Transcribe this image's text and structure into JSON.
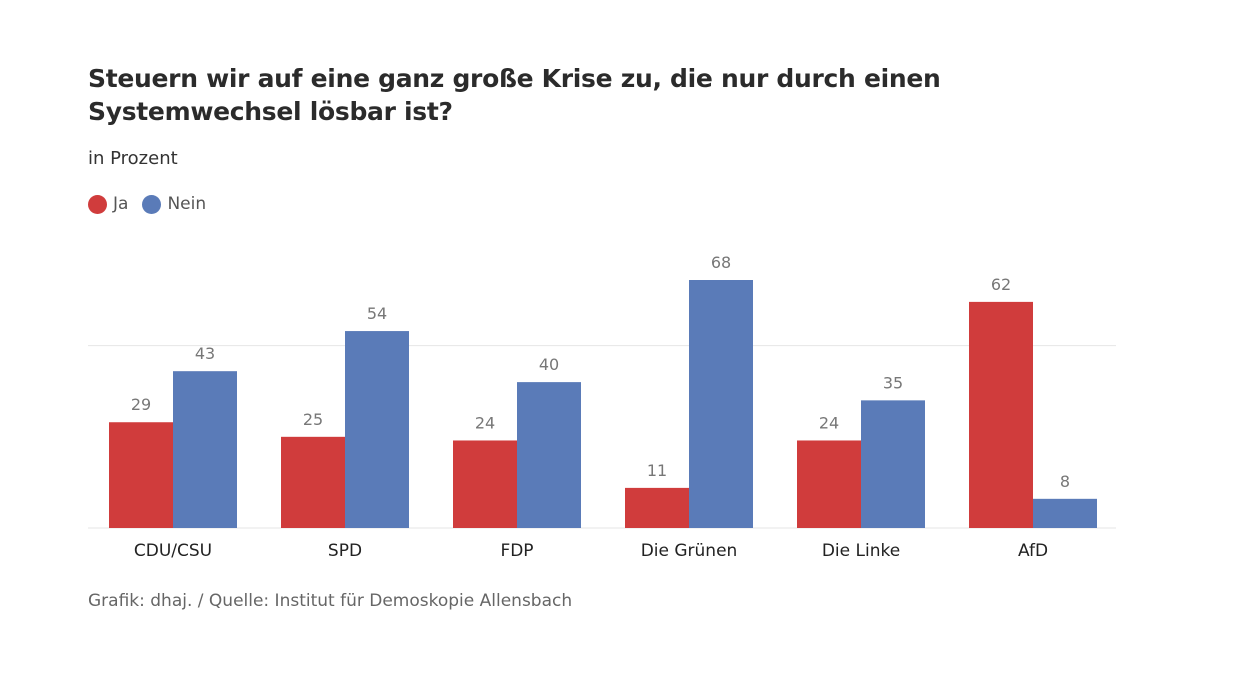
{
  "title": "Steuern wir auf eine ganz große Krise zu, die nur durch einen Systemwechsel lösbar ist?",
  "subtitle": "in Prozent",
  "source": "Grafik: dhaj. / Quelle: Institut für Demoskopie Allensbach",
  "chart_data": {
    "type": "bar",
    "title": "Steuern wir auf eine ganz große Krise zu, die nur durch einen Systemwechsel lösbar ist?",
    "subtitle": "in Prozent",
    "xlabel": "",
    "ylabel": "",
    "ylim": [
      0,
      70
    ],
    "gridlines": [
      0,
      50
    ],
    "legend_position": "top-left",
    "categories": [
      "CDU/CSU",
      "SPD",
      "FDP",
      "Die Grünen",
      "Die Linke",
      "AfD"
    ],
    "series": [
      {
        "name": "Ja",
        "color": "#d03c3c",
        "values": [
          29,
          25,
          24,
          11,
          24,
          62
        ]
      },
      {
        "name": "Nein",
        "color": "#5a7bb8",
        "values": [
          43,
          54,
          40,
          68,
          35,
          8
        ]
      }
    ]
  }
}
